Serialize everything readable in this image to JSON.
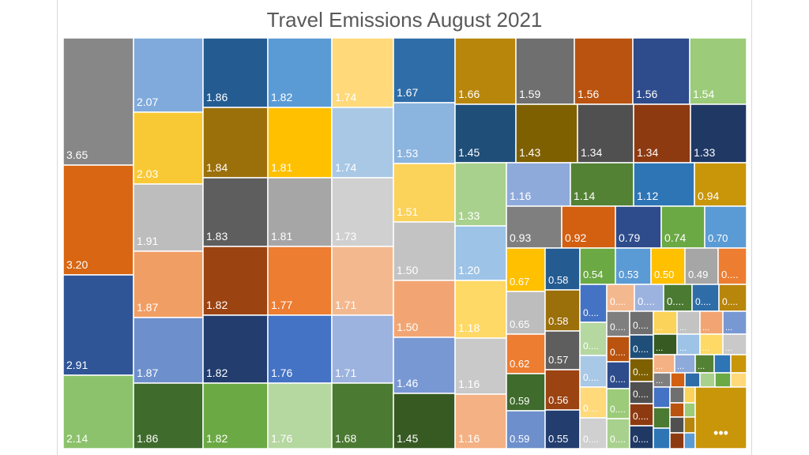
{
  "chart_data": {
    "type": "treemap",
    "title": "Travel Emissions August 2021",
    "values": [
      3.65,
      3.2,
      2.91,
      2.14,
      2.07,
      2.03,
      1.91,
      1.87,
      1.87,
      1.86,
      1.86,
      1.84,
      1.83,
      1.82,
      1.82,
      1.82,
      1.82,
      1.81,
      1.81,
      1.77,
      1.76,
      1.76,
      1.74,
      1.74,
      1.73,
      1.71,
      1.71,
      1.68,
      1.67,
      1.53,
      1.51,
      1.5,
      1.5,
      1.46,
      1.45,
      1.66,
      1.59,
      1.56,
      1.56,
      1.54,
      1.45,
      1.43,
      1.34,
      1.34,
      1.33,
      1.33,
      1.2,
      1.18,
      1.16,
      1.16,
      1.16,
      1.14,
      1.12,
      0.94,
      0.93,
      0.92,
      0.79,
      0.74,
      0.7,
      0.67,
      0.65,
      0.62,
      0.59,
      0.59,
      0.58,
      0.58,
      0.57,
      0.56,
      0.55,
      0.54,
      0.53,
      0.5,
      0.49
    ],
    "truncated_label": "0....",
    "small_label": "...",
    "ellipsis_label": "•••",
    "colors": {
      "orange": "#D86613",
      "blue": "#2F5597",
      "green": "#8BC26B",
      "grey": "#878787",
      "lightBlue": "#7FAADB",
      "yellow": "#F9C935",
      "lightGrey": "#BDBDBD",
      "salmon": "#F19E64",
      "periwinkle": "#6D8FCC",
      "darkGreen": "#3F6B2C",
      "navy": "#245C92",
      "olive": "#9B6F0A",
      "darkGrey": "#5E5E5E",
      "rust": "#9C4312",
      "deepNavy": "#223D6E",
      "leaf": "#6BA944",
      "skyBlue": "#5B9BD5",
      "gold": "#FFC000",
      "midGrey": "#A6A6A6",
      "brightOrange": "#ED7D31",
      "royalBlue": "#4472C4",
      "paleGreen": "#B5D7A0",
      "paleYellow": "#FFD97A",
      "paleBlue": "#A9C8E6",
      "paleGrey": "#D0D0D0",
      "peach": "#F4B88F",
      "lavender": "#9DB3DF",
      "forest": "#4B7A32",
      "steel": "#2E6DA8",
      "softBlue": "#8BB4DF",
      "amber": "#FBD25A",
      "silver": "#C3C3C3",
      "apricot": "#F2A572",
      "cornflower": "#7898D3",
      "pine": "#375A23",
      "mustard": "#B8860B",
      "slate": "#6F6F6F",
      "burnt": "#B9530F",
      "indigo": "#2E4C8C",
      "lime": "#9CCB79",
      "marine": "#1F4E79",
      "bronze": "#7F6000",
      "charcoal": "#505050",
      "brick": "#8E3A11",
      "midnight": "#203864",
      "mint": "#A9D18E",
      "azure": "#9DC3E6",
      "sand": "#FFD966",
      "fog": "#C9C9C9",
      "blush": "#F4B183",
      "cloud": "#8EAADB",
      "fern": "#548235",
      "cobalt": "#2E75B6",
      "ochre": "#C9960A",
      "ash": "#7F7F7F",
      "tangerine": "#D35F10"
    }
  }
}
